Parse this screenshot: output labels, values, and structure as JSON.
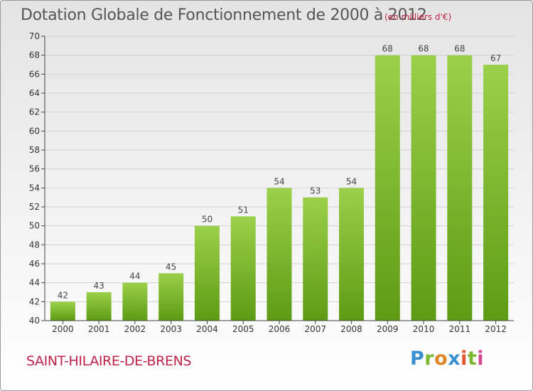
{
  "header": {
    "title": "Dotation Globale de Fonctionnement de 2000 à 2012",
    "subtitle": "(en milliers d'€)"
  },
  "footer": {
    "commune": "SAINT-HILAIRE-DE-BRENS",
    "logo_text": "Proxiti"
  },
  "colors": {
    "bar_light": "#9bd04a",
    "bar_dark": "#5e9b14",
    "title": "#555555",
    "accent": "#c0234a"
  },
  "chart_data": {
    "type": "bar",
    "title": "Dotation Globale de Fonctionnement de 2000 à 2012",
    "subtitle": "(en milliers d'€)",
    "xlabel": "",
    "ylabel": "",
    "categories": [
      "2000",
      "2001",
      "2002",
      "2003",
      "2004",
      "2005",
      "2006",
      "2007",
      "2008",
      "2009",
      "2010",
      "2011",
      "2012"
    ],
    "values": [
      42,
      43,
      44,
      45,
      50,
      51,
      54,
      53,
      54,
      68,
      68,
      68,
      67
    ],
    "ylim": [
      40,
      70
    ],
    "yticks": [
      40,
      42,
      44,
      46,
      48,
      50,
      52,
      54,
      56,
      58,
      60,
      62,
      64,
      66,
      68,
      70
    ],
    "grid": true,
    "legend": "none"
  }
}
